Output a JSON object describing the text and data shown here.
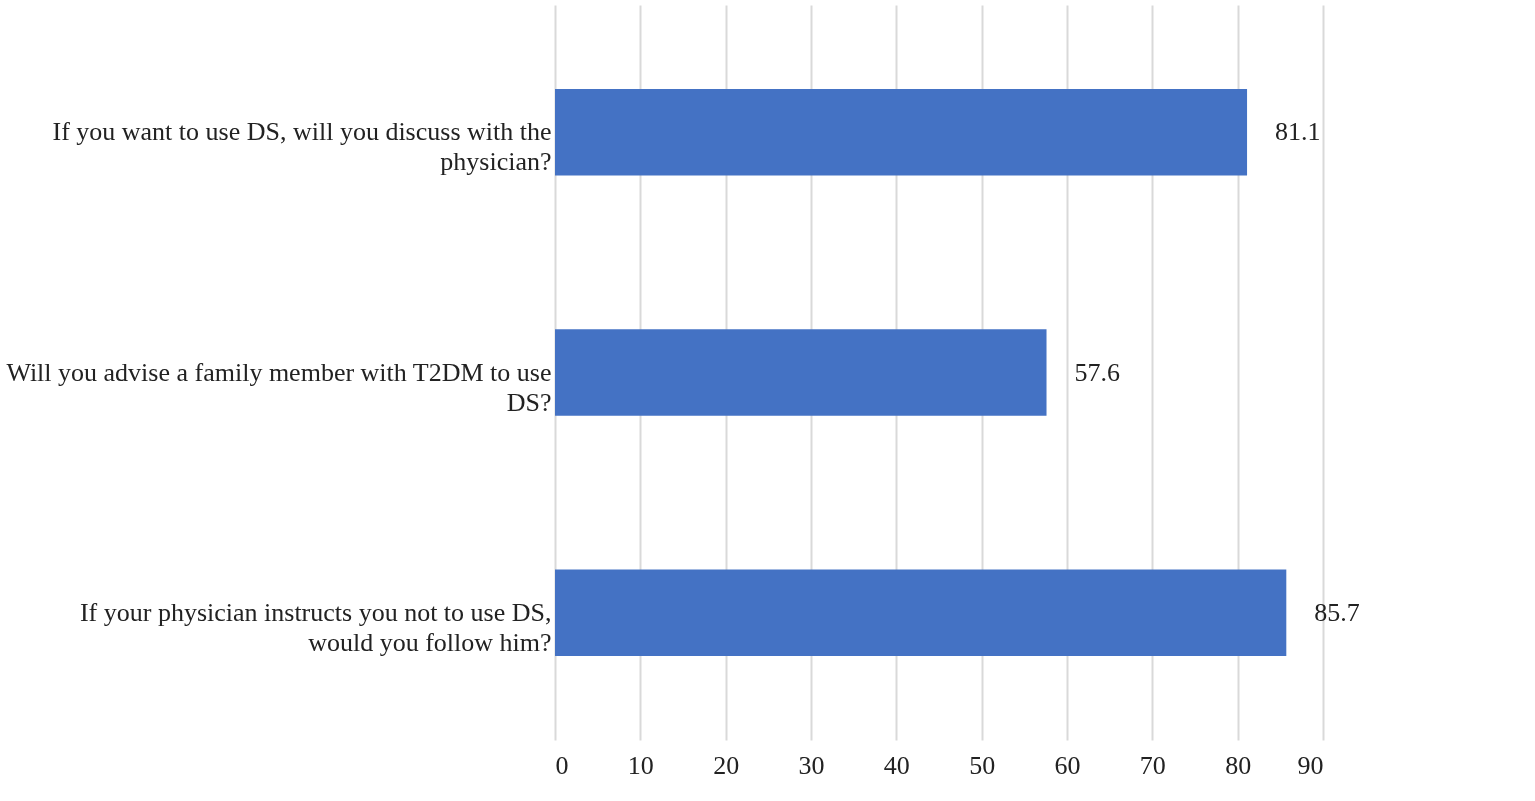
{
  "chart_data": {
    "type": "bar",
    "orientation": "horizontal",
    "categories": [
      "If you want to use DS, will you discuss with the physician?",
      "Will you advise a family member with T2DM to use DS?",
      "If your physician instructs you not to use DS, would you follow him?"
    ],
    "values": [
      81.1,
      57.6,
      85.7
    ],
    "color": "#4472c4",
    "xlim": [
      0,
      90
    ],
    "xticks": [
      0,
      10,
      20,
      30,
      40,
      50,
      60,
      70,
      80,
      90
    ],
    "grid": "x",
    "data_labels": true
  }
}
